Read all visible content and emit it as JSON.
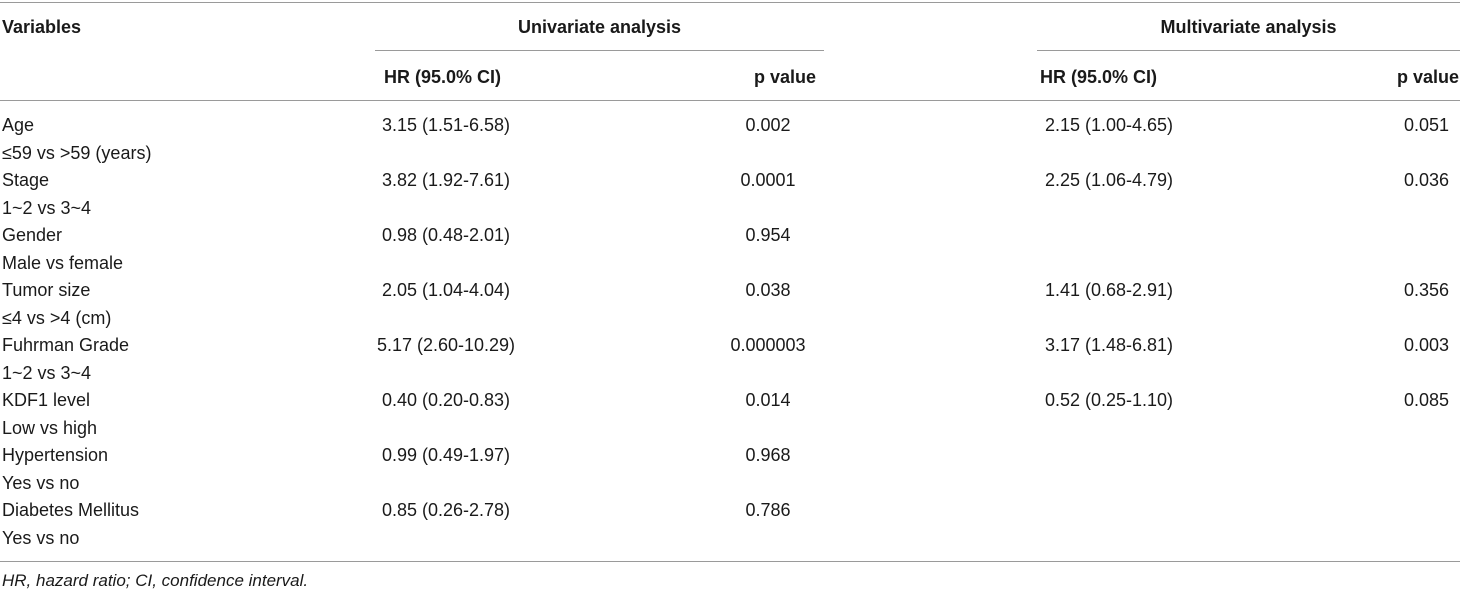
{
  "header": {
    "variables": "Variables",
    "univariate": "Univariate analysis",
    "multivariate": "Multivariate analysis",
    "hr": "HR (95.0% CI)",
    "p": "p value"
  },
  "rows": [
    {
      "name": "Age",
      "sub": "≤59 vs >59 (years)",
      "uni_hr": "3.15 (1.51-6.58)",
      "uni_p": "0.002",
      "multi_hr": "2.15 (1.00-4.65)",
      "multi_p": "0.051"
    },
    {
      "name": "Stage",
      "sub": "1~2 vs 3~4",
      "uni_hr": "3.82 (1.92-7.61)",
      "uni_p": "0.0001",
      "multi_hr": "2.25 (1.06-4.79)",
      "multi_p": "0.036"
    },
    {
      "name": "Gender",
      "sub": "Male vs female",
      "uni_hr": "0.98 (0.48-2.01)",
      "uni_p": "0.954",
      "multi_hr": "",
      "multi_p": ""
    },
    {
      "name": "Tumor size",
      "sub": "≤4 vs >4 (cm)",
      "uni_hr": "2.05 (1.04-4.04)",
      "uni_p": "0.038",
      "multi_hr": "1.41 (0.68-2.91)",
      "multi_p": "0.356"
    },
    {
      "name": "Fuhrman Grade",
      "sub": "1~2 vs 3~4",
      "uni_hr": "5.17 (2.60-10.29)",
      "uni_p": "0.000003",
      "multi_hr": "3.17 (1.48-6.81)",
      "multi_p": "0.003"
    },
    {
      "name": "KDF1 level",
      "sub": "Low vs high",
      "uni_hr": "0.40 (0.20-0.83)",
      "uni_p": "0.014",
      "multi_hr": "0.52 (0.25-1.10)",
      "multi_p": "0.085"
    },
    {
      "name": "Hypertension",
      "sub": "Yes vs no",
      "uni_hr": "0.99 (0.49-1.97)",
      "uni_p": "0.968",
      "multi_hr": "",
      "multi_p": ""
    },
    {
      "name": "Diabetes Mellitus",
      "sub": "Yes vs no",
      "uni_hr": "0.85 (0.26-2.78)",
      "uni_p": "0.786",
      "multi_hr": "",
      "multi_p": ""
    }
  ],
  "footnote": "HR, hazard ratio; CI, confidence interval."
}
